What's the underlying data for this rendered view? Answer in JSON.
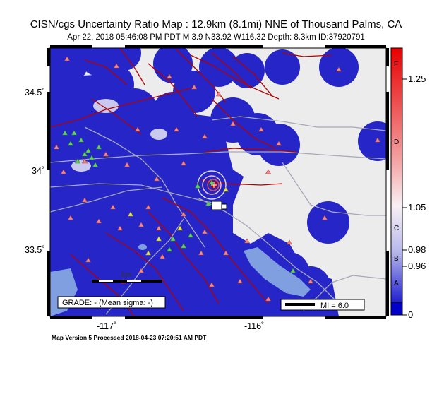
{
  "title": "CISN/cgs Uncertainty Ratio Map : 12.9km (8.1mi) NNE of Thousand Palms, CA",
  "subtitle": "Apr 22, 2018 05:46:08 PM PDT   M 3.9   N33.92 W116.32   Depth: 8.3km   ID:37920791",
  "footer": "Map Version 5 Processed 2018-04-23 07:20:51 AM PDT",
  "grade_box": "GRADE: - (Mean sigma: -)",
  "mi_box": "MI = 6.0",
  "scale_label": "km",
  "axes": {
    "lat_ticks": [
      {
        "label": "34.5˚",
        "value": 34.5
      },
      {
        "label": "34˚",
        "value": 34.0
      },
      {
        "label": "33.5˚",
        "value": 33.5
      }
    ],
    "lon_ticks": [
      {
        "label": "-117˚",
        "value": -117
      },
      {
        "label": "-116˚",
        "value": -116
      }
    ]
  },
  "colorbar": {
    "values": [
      {
        "label": "1.25",
        "value": 1.25
      },
      {
        "label": "1.05",
        "value": 1.05
      },
      {
        "label": "0.98",
        "value": 0.98
      },
      {
        "label": "0.96",
        "value": 0.96
      },
      {
        "label": "0",
        "value": 0
      }
    ],
    "grades": [
      "F",
      "D",
      "C",
      "B",
      "A"
    ],
    "colors": {
      "high": "#e00000",
      "mid": "#f6eef2",
      "low": "#0000c8"
    }
  },
  "colors": {
    "land": "#ececec",
    "water": "#7f9fe0",
    "station_blob": "#2323c8",
    "fault": "#b40000",
    "road": "#a8a8b8",
    "station_red": "#f28c8c",
    "station_green": "#63d463",
    "station_yellow": "#e8e85a"
  }
}
